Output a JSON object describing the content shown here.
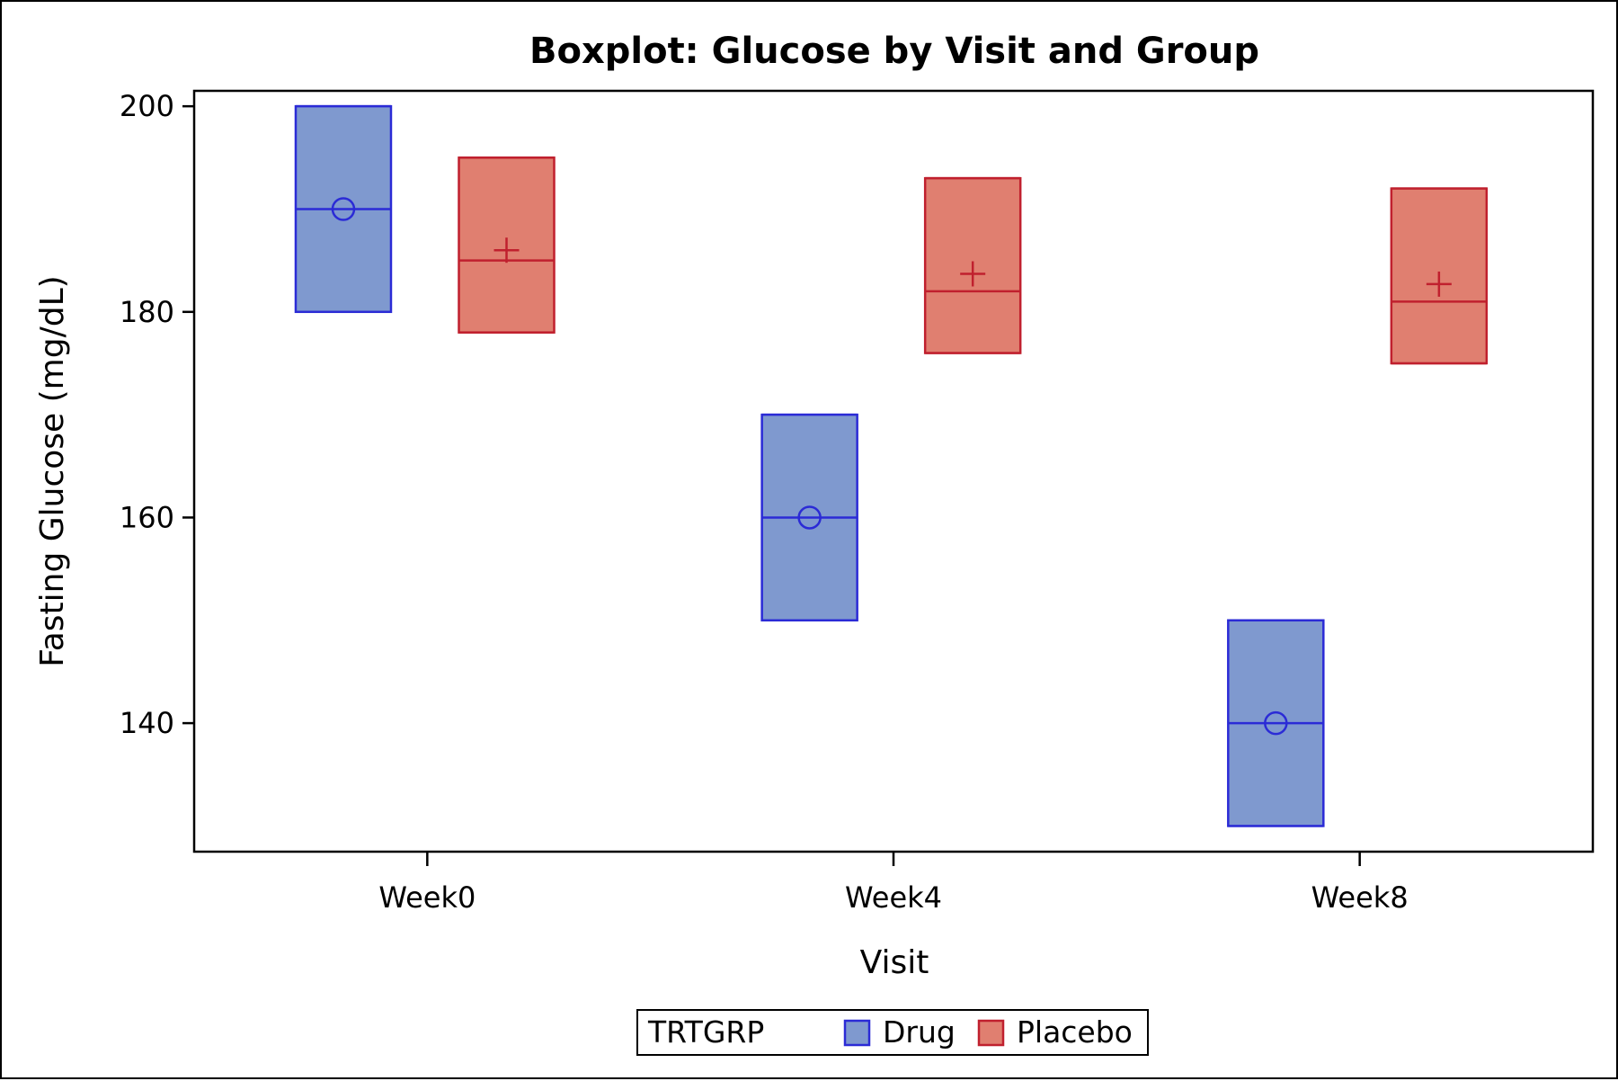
{
  "chart_data": {
    "type": "box",
    "title": "Boxplot: Glucose by Visit and Group",
    "xlabel": "Visit",
    "ylabel": "Fasting Glucose (mg/dL)",
    "ylim": [
      127.5,
      201.5
    ],
    "yticks": [
      140,
      160,
      180,
      200
    ],
    "categories": [
      "Week0",
      "Week4",
      "Week8"
    ],
    "grid": false,
    "legend": {
      "title": "TRTGRP",
      "position": "bottom"
    },
    "series": [
      {
        "name": "Drug",
        "color_fill": "#7f99cf",
        "color_line": "#2b2bd6",
        "mean_marker": "circle",
        "boxes": [
          {
            "min": 180,
            "q1": 180,
            "median": 190,
            "q3": 200,
            "max": 200,
            "mean": 190
          },
          {
            "min": 150,
            "q1": 150,
            "median": 160,
            "q3": 170,
            "max": 170,
            "mean": 160
          },
          {
            "min": 130,
            "q1": 130,
            "median": 140,
            "q3": 150,
            "max": 150,
            "mean": 140
          }
        ]
      },
      {
        "name": "Placebo",
        "color_fill": "#e07f70",
        "color_line": "#c0202e",
        "mean_marker": "plus",
        "boxes": [
          {
            "min": 178,
            "q1": 178,
            "median": 185,
            "q3": 195,
            "max": 195,
            "mean": 186
          },
          {
            "min": 176,
            "q1": 176,
            "median": 182,
            "q3": 193,
            "max": 193,
            "mean": 183.7
          },
          {
            "min": 175,
            "q1": 175,
            "median": 181,
            "q3": 192,
            "max": 192,
            "mean": 182.7
          }
        ]
      }
    ]
  }
}
